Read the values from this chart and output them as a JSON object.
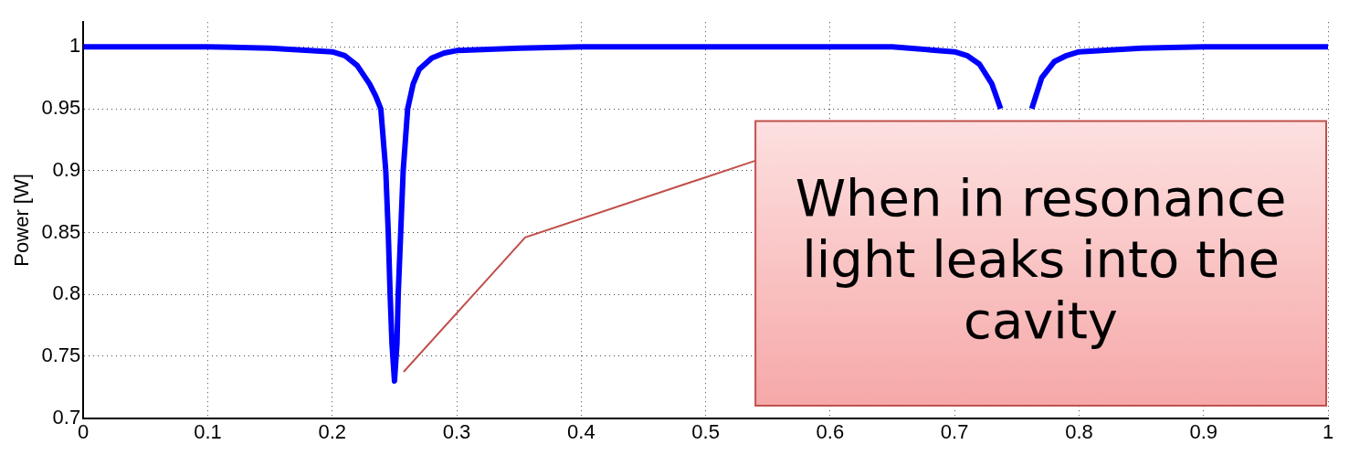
{
  "chart_data": {
    "type": "line",
    "ylabel": "Power [W]",
    "xlim": [
      0,
      1
    ],
    "ylim": [
      0.7,
      1.02
    ],
    "xticks": [
      0,
      0.1,
      0.2,
      0.3,
      0.4,
      0.5,
      0.6,
      0.7,
      0.8,
      0.9,
      1
    ],
    "yticks": [
      0.7,
      0.75,
      0.8,
      0.85,
      0.9,
      0.95,
      1
    ],
    "grid": true,
    "marker": "none",
    "line_style": "solid",
    "series": [
      {
        "color": "#0000ff",
        "x": [
          0,
          0.1,
          0.15,
          0.2,
          0.21,
          0.22,
          0.23,
          0.235,
          0.239,
          0.243,
          0.245,
          0.2465,
          0.248,
          0.25,
          0.252,
          0.253,
          0.255,
          0.257,
          0.2606,
          0.265,
          0.27,
          0.28,
          0.29,
          0.3,
          0.35,
          0.4,
          0.5,
          0.6,
          0.65,
          0.7,
          0.71,
          0.72,
          0.73,
          0.737,
          0.74,
          0.76,
          0.762,
          0.77,
          0.78,
          0.79,
          0.8,
          0.85,
          0.9,
          1
        ],
        "values": [
          1,
          1,
          0.999,
          0.996,
          0.993,
          0.985,
          0.97,
          0.96,
          0.95,
          0.9,
          0.85,
          0.8,
          0.76,
          0.73,
          0.76,
          0.8,
          0.85,
          0.9,
          0.95,
          0.97,
          0.982,
          0.991,
          0.995,
          0.997,
          0.999,
          1,
          1,
          1,
          1,
          0.996,
          0.993,
          0.986,
          0.97,
          0.95,
          null,
          null,
          0.95,
          0.975,
          0.988,
          0.993,
          0.996,
          0.999,
          1,
          1
        ]
      }
    ],
    "annotations": [
      "When in resonance light leaks into the cavity"
    ]
  }
}
